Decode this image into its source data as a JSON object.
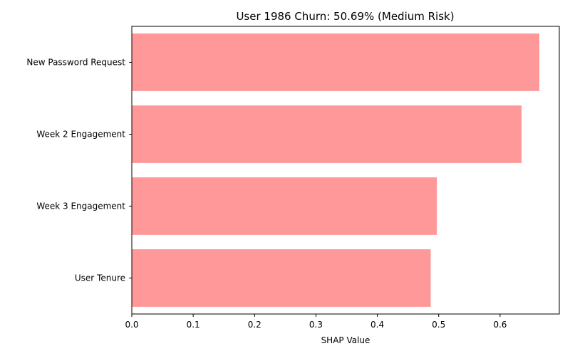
{
  "chart_data": {
    "type": "bar",
    "orientation": "horizontal",
    "title": "User 1986 Churn: 50.69% (Medium Risk)",
    "xlabel": "SHAP Value",
    "ylabel": "",
    "categories": [
      "New Password Request",
      "Week 2 Engagement",
      "Week 3 Engagement",
      "User Tenure"
    ],
    "values": [
      0.664,
      0.635,
      0.497,
      0.487
    ],
    "xlim": [
      0,
      0.6965
    ],
    "xticks": [
      0.0,
      0.1,
      0.2,
      0.3,
      0.4,
      0.5,
      0.6
    ],
    "xtick_labels": [
      "0.0",
      "0.1",
      "0.2",
      "0.3",
      "0.4",
      "0.5",
      "0.6"
    ],
    "bar_color": "#ff9999",
    "grid": false,
    "legend": "none"
  }
}
